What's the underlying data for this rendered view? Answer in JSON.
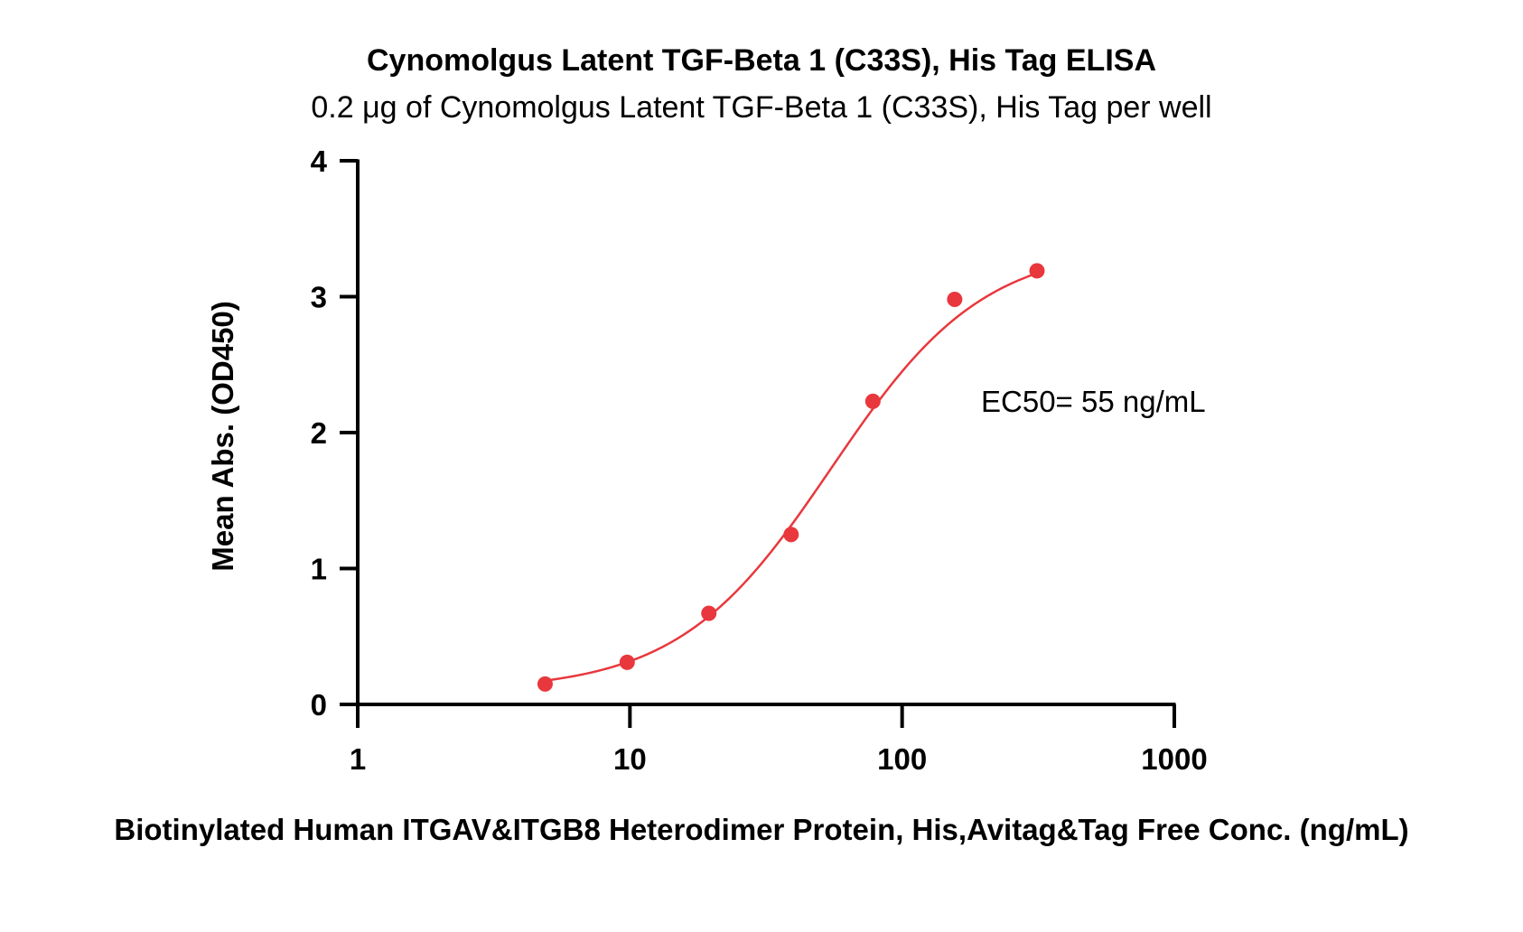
{
  "chart_data": {
    "type": "scatter",
    "title": "Cynomolgus Latent TGF-Beta 1 (C33S), His Tag ELISA",
    "subtitle": "0.2 μg of Cynomolgus Latent TGF-Beta 1 (C33S), His Tag per well",
    "xlabel": "Biotinylated Human ITGAV&ITGB8 Heterodimer Protein, His,Avitag&Tag Free Conc. (ng/mL)",
    "ylabel": "Mean Abs. (OD450)",
    "x_scale": "log",
    "xlim": [
      1,
      1000
    ],
    "ylim": [
      0,
      4
    ],
    "x_ticks": [
      1,
      10,
      100,
      1000
    ],
    "x_tick_labels": [
      "1",
      "10",
      "100",
      "1000"
    ],
    "y_ticks": [
      0,
      1,
      2,
      3,
      4
    ],
    "y_tick_labels": [
      "0",
      "1",
      "2",
      "3",
      "4"
    ],
    "grid": false,
    "colors": {
      "series": "#e8383d",
      "axis": "#000000"
    },
    "series": [
      {
        "x": [
          4.88,
          9.77,
          19.5,
          39.1,
          78.1,
          156,
          313
        ],
        "y": [
          0.15,
          0.31,
          0.67,
          1.25,
          2.23,
          2.98,
          3.19
        ],
        "fit": "4PL"
      }
    ],
    "fit_params": {
      "bottom": 0.1,
      "top": 3.38,
      "ec50": 55,
      "hill": 1.55
    },
    "annotations": [
      {
        "text": "EC50= 55 ng/mL"
      }
    ]
  }
}
